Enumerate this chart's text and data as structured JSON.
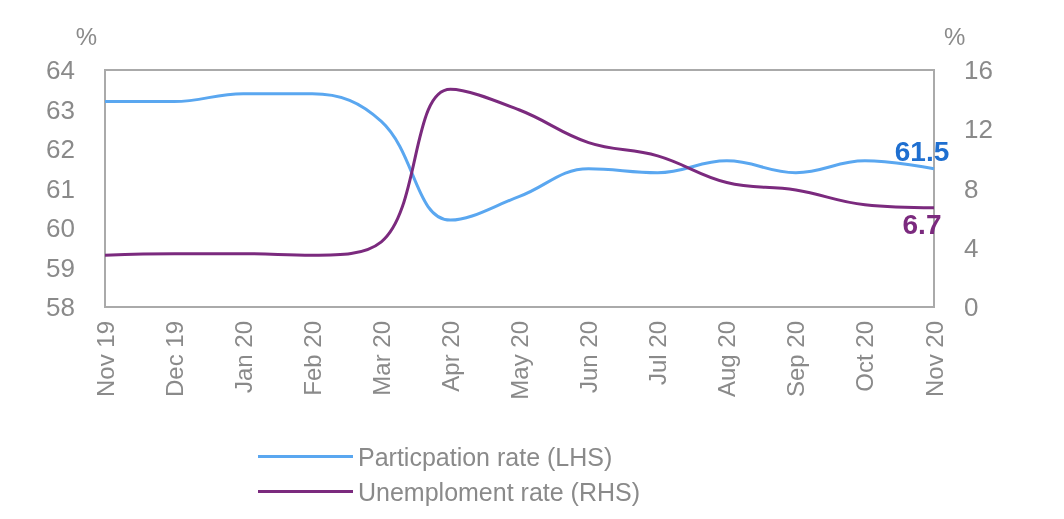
{
  "chart_data": {
    "type": "line",
    "ylabel": "%",
    "y2label": "%",
    "categories": [
      "Nov 19",
      "Dec 19",
      "Jan 20",
      "Feb 20",
      "Mar 20",
      "Apr 20",
      "May 20",
      "Jun 20",
      "Jul 20",
      "Aug 20",
      "Sep 20",
      "Oct 20",
      "Nov 20"
    ],
    "series": [
      {
        "name": "Particpation rate (LHS)",
        "color": "#5aa7f0",
        "values": [
          63.2,
          63.2,
          63.4,
          63.4,
          62.7,
          60.2,
          60.8,
          61.5,
          61.4,
          61.7,
          61.4,
          61.7,
          61.5
        ],
        "value_labels": [
          null,
          null,
          null,
          null,
          null,
          null,
          null,
          null,
          null,
          null,
          null,
          null,
          "61.5"
        ]
      },
      {
        "name": "Unemploment rate (RHS)",
        "color": "#7b2a7e",
        "axis": "y2",
        "values": [
          3.5,
          3.6,
          3.6,
          3.5,
          4.4,
          14.7,
          13.3,
          11.1,
          10.2,
          8.4,
          7.9,
          6.9,
          6.7
        ],
        "value_labels": [
          null,
          null,
          null,
          null,
          null,
          null,
          null,
          null,
          null,
          null,
          null,
          null,
          "6.7"
        ]
      }
    ],
    "ylim": [
      58,
      64
    ],
    "yticks": [
      58,
      59,
      60,
      61,
      62,
      63,
      64
    ],
    "y2lim": [
      0,
      16
    ],
    "y2ticks": [
      0,
      4,
      8,
      12,
      16
    ],
    "legend": "bottom",
    "grid": false,
    "marker": "none",
    "line_style": "solid"
  }
}
